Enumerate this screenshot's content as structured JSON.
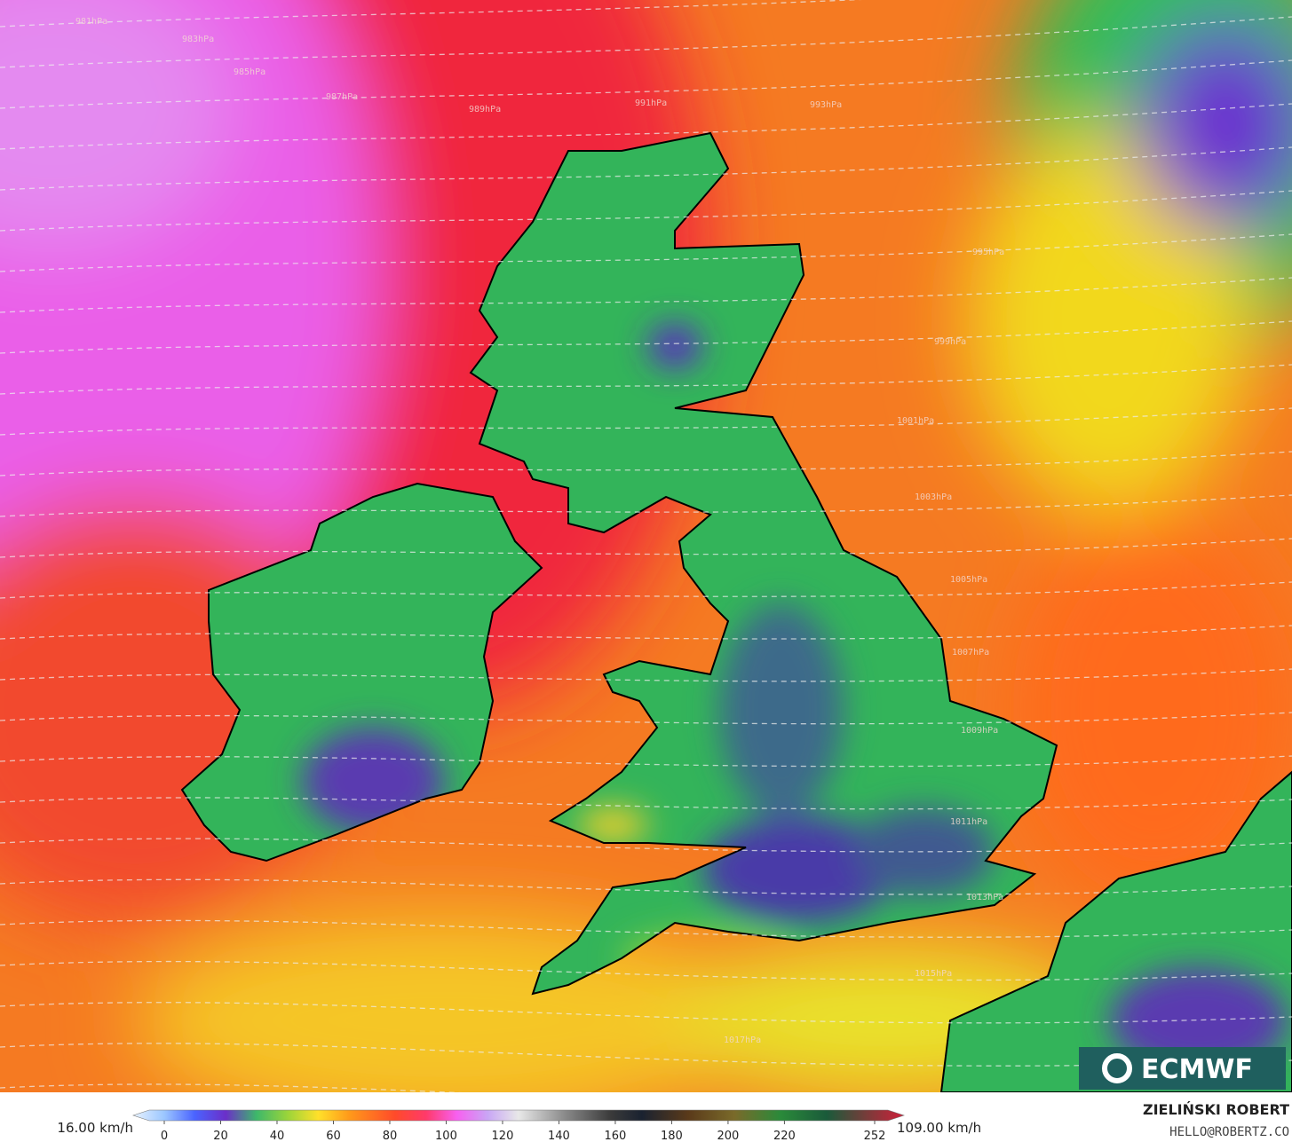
{
  "isobars": [
    "981hPa",
    "983hPa",
    "985hPa",
    "987hPa",
    "989hPa",
    "991hPa",
    "993hPa",
    "995hPa",
    "999hPa",
    "1001hPa",
    "1003hPa",
    "1005hPa",
    "1007hPa",
    "1009hPa",
    "1011hPa",
    "1013hPa",
    "1015hPa",
    "1017hPa"
  ],
  "logo": "ECMWF",
  "legend": {
    "min_label": "16.00 km/h",
    "max_label": "109.00 km/h",
    "ticks": [
      0,
      20,
      40,
      60,
      80,
      100,
      120,
      140,
      160,
      180,
      200,
      220,
      252
    ]
  },
  "credit": {
    "name": "ZIELIŃSKI ROBERT",
    "email": "HELLO@ROBERTZ.CO"
  }
}
